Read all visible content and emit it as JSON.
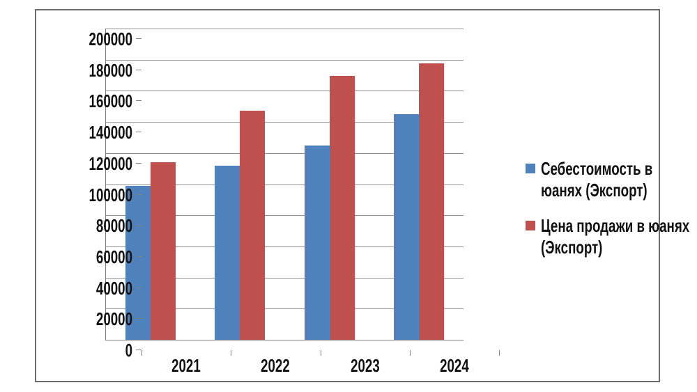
{
  "chart_data": {
    "type": "bar",
    "title": "",
    "xlabel": "",
    "ylabel": "",
    "categories": [
      "2021",
      "2022",
      "2023",
      "2024"
    ],
    "series": [
      {
        "name": "Себестоимость в юанях (Экспорт)",
        "color": "#4f81bd",
        "values": [
          99000,
          112000,
          125000,
          145000
        ]
      },
      {
        "name": "Цена продажи в юанях (Экспорт)",
        "color": "#c0504d",
        "values": [
          114000,
          147000,
          169500,
          177500
        ]
      }
    ],
    "ylim": [
      0,
      200000
    ],
    "ytick_step": 20000,
    "yticks": [
      0,
      20000,
      40000,
      60000,
      80000,
      100000,
      120000,
      140000,
      160000,
      180000,
      200000
    ],
    "grid": "horizontal",
    "legend_position": "right"
  },
  "style": {
    "background": "#ffffff",
    "frame_border": "#6a6b6d",
    "gridline": "#8f8f8f",
    "axis": "#808080",
    "text": "#111111"
  }
}
